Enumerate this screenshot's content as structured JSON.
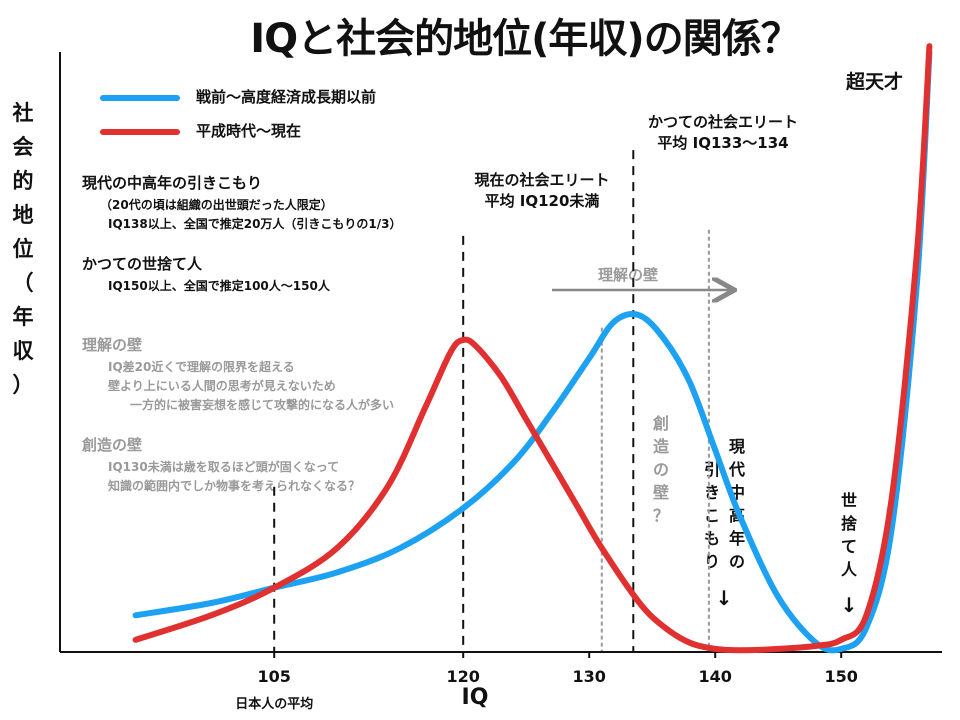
{
  "title": "IQと社会的地位(年収)の関係？",
  "ylabel": "社会的地位（年収）",
  "legend": [
    {
      "label": "戦前〜高度経済成長期以前",
      "color": "#1da1f2"
    },
    {
      "label": "平成時代〜現在",
      "color": "#e03030"
    }
  ],
  "notes": {
    "hikikomori": {
      "heading": "現代の中高年の引きこもり",
      "lines": [
        "（20代の頃は組織の出世頭だった人限定）",
        "IQ138以上、全国で推定20万人（引きこもりの1/3）"
      ]
    },
    "hermit": {
      "heading": "かつての世捨て人",
      "lines": [
        "IQ150以上、全国で推定100人〜150人"
      ]
    },
    "wall_understanding": {
      "heading": "理解の壁",
      "lines": [
        "IQ差20近くで理解の限界を超える",
        "壁より上にいる人間の思考が見えないため",
        "一方的に被害妄想を感じて攻撃的になる人が多い"
      ]
    },
    "wall_creativity": {
      "heading": "創造の壁",
      "lines": [
        "IQ130未満は歳を取るほど頭が固くなって",
        "知識の範囲内でしか物事を考えられなくなる？"
      ]
    }
  },
  "annotations": {
    "current_elite": {
      "line1": "現在の社会エリート",
      "line2": "平均 IQ120未満"
    },
    "former_elite": {
      "line1": "かつての社会エリート",
      "line2": "平均 IQ133〜134"
    },
    "genius": "超天才",
    "arrow_label": "理解の壁",
    "creativity_wall_vertical": "創造の壁？",
    "hikikomori_vertical_1": "現代中高年の",
    "hikikomori_vertical_2": "引きこもり",
    "hikikomori_arrow": "↓",
    "hermit_vertical": "世捨て人",
    "hermit_arrow": "↓"
  },
  "chart_data": {
    "type": "line",
    "xlabel": "IQ",
    "xlim": [
      88,
      158
    ],
    "ylim": [
      0,
      100
    ],
    "ticks": [
      {
        "value": 105,
        "label": "105",
        "sublabel": "日本人の平均"
      },
      {
        "value": 120,
        "label": "120"
      },
      {
        "value": 130,
        "label": "130"
      },
      {
        "value": 140,
        "label": "140"
      },
      {
        "value": 150,
        "label": "150"
      }
    ],
    "reference_lines": [
      {
        "x": 105,
        "style": "dashed",
        "color": "#111111",
        "top": 27
      },
      {
        "x": 120,
        "style": "dashed",
        "color": "#111111",
        "top": 68
      },
      {
        "x": 131,
        "style": "dotted",
        "color": "#9a9a9a",
        "top": 53
      },
      {
        "x": 133.5,
        "style": "dashed",
        "color": "#111111",
        "top": 82
      },
      {
        "x": 139.5,
        "style": "dotted",
        "color": "#9a9a9a",
        "top": 69
      }
    ],
    "series": [
      {
        "name": "戦前〜高度経済成長期以前",
        "color": "#1da1f2",
        "x": [
          94,
          100,
          105,
          110,
          115,
          120,
          124,
          127,
          130,
          132,
          134,
          136,
          138,
          140,
          142,
          145,
          148,
          150,
          152,
          154,
          156,
          157
        ],
        "y": [
          6,
          8,
          10.5,
          13,
          17,
          23.5,
          31,
          39,
          48,
          54,
          55,
          51,
          44,
          33,
          22,
          9,
          1.5,
          0.5,
          4,
          20,
          60,
          98
        ]
      },
      {
        "name": "平成時代〜現在",
        "color": "#e03030",
        "x": [
          94,
          100,
          105,
          110,
          114,
          117,
          119,
          120,
          121,
          123,
          125,
          127,
          129,
          131,
          134,
          136,
          138,
          140,
          142,
          145,
          148,
          150,
          152,
          154,
          156,
          157
        ],
        "y": [
          2,
          6,
          10.5,
          17,
          27,
          40,
          49,
          51,
          50,
          45,
          38,
          31,
          24,
          17,
          8,
          4,
          1.5,
          0.5,
          0.3,
          0.5,
          1,
          2,
          6,
          25,
          65,
          99
        ]
      }
    ]
  }
}
